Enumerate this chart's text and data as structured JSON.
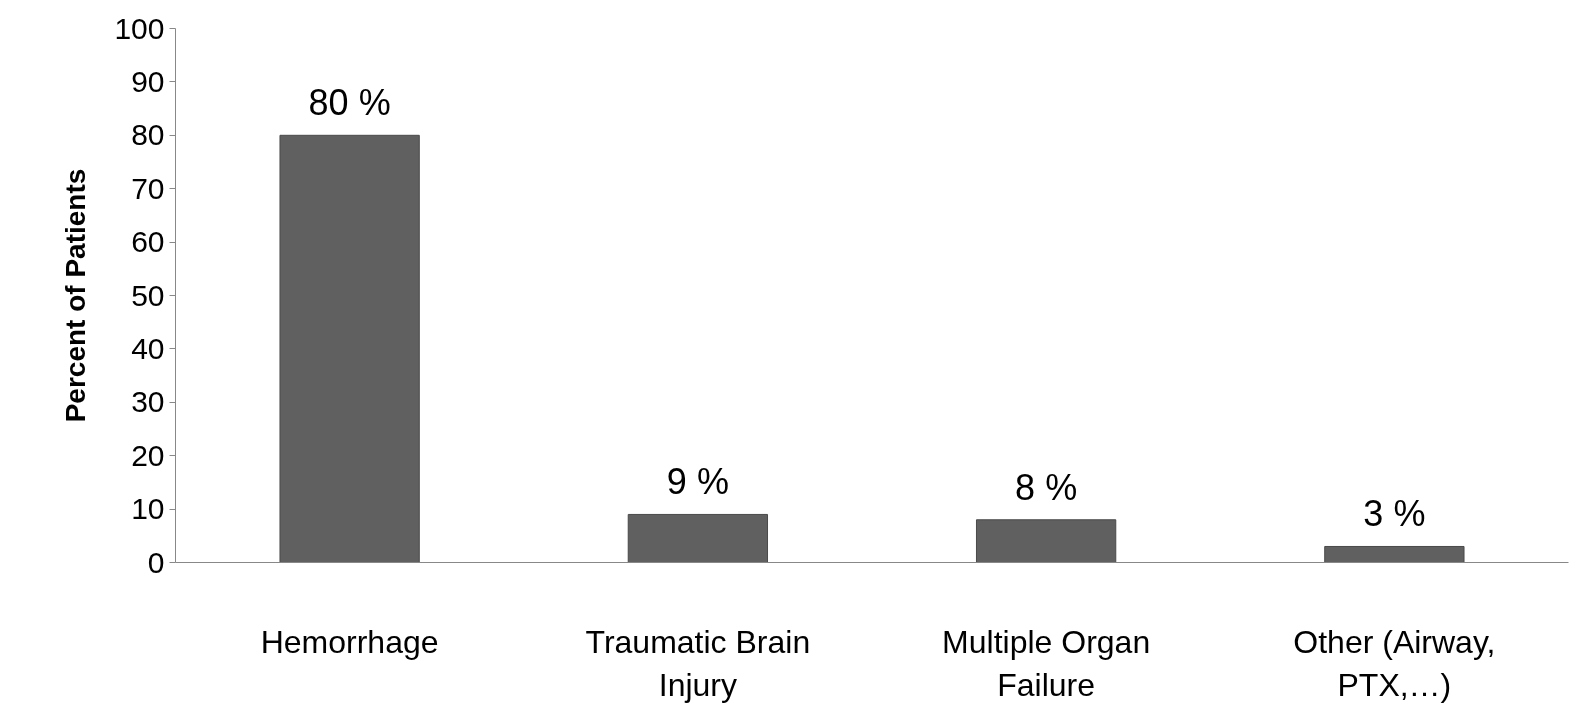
{
  "chart_data": {
    "type": "bar",
    "ylabel": "Percent of Patients",
    "categories": [
      "Hemorrhage",
      "Traumatic Brain Injury",
      "Multiple Organ Failure",
      "Other (Airway, PTX,…)"
    ],
    "values": [
      80,
      9,
      8,
      3
    ],
    "value_labels": [
      "80 %",
      "9 %",
      "8 %",
      "3 %"
    ],
    "color": "#606060",
    "ylim": [
      0,
      100
    ],
    "yticks": [
      0,
      10,
      20,
      30,
      40,
      50,
      60,
      70,
      80,
      90,
      100
    ],
    "grid": false
  }
}
